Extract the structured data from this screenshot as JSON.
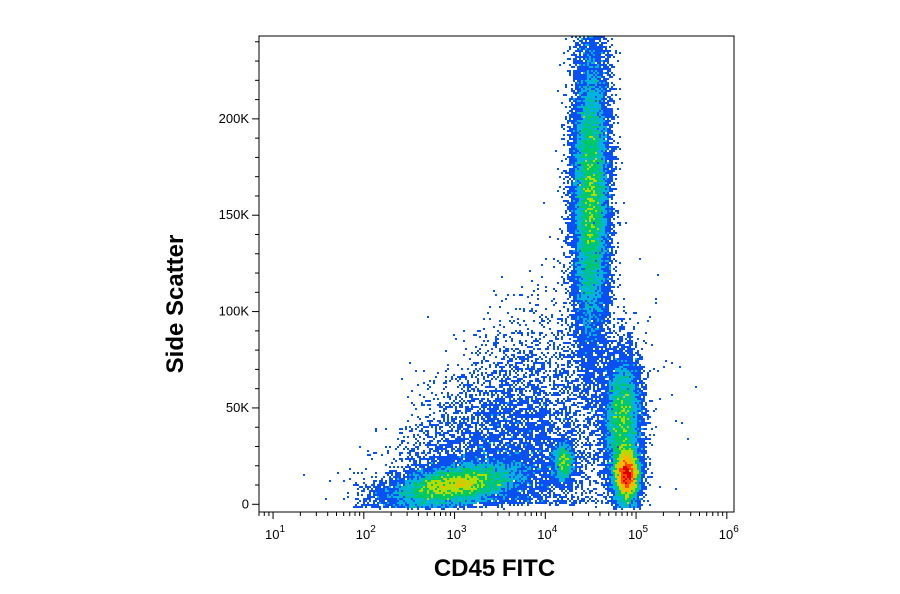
{
  "chart_data": {
    "type": "scatter",
    "style": "density-dot-plot",
    "title": "",
    "xlabel": "CD45 FITC",
    "ylabel": "Side Scatter",
    "x_scale": "log",
    "xlim": [
      7,
      1200000
    ],
    "ylim": [
      -4000,
      243000
    ],
    "x_ticks": [
      {
        "value": 10,
        "base": "10",
        "exp": "1"
      },
      {
        "value": 100,
        "base": "10",
        "exp": "2"
      },
      {
        "value": 1000,
        "base": "10",
        "exp": "3"
      },
      {
        "value": 10000,
        "base": "10",
        "exp": "4"
      },
      {
        "value": 100000,
        "base": "10",
        "exp": "5"
      },
      {
        "value": 1000000,
        "base": "10",
        "exp": "6"
      }
    ],
    "y_ticks": [
      {
        "value": 0,
        "label": "0"
      },
      {
        "value": 50000,
        "label": "50K"
      },
      {
        "value": 100000,
        "label": "100K"
      },
      {
        "value": 150000,
        "label": "150K"
      },
      {
        "value": 200000,
        "label": "200K"
      }
    ],
    "density_colors": [
      "#1010c8",
      "#0a50f0",
      "#00b4dc",
      "#00c864",
      "#b4dc00",
      "#ffb400",
      "#ff4a00",
      "#dc0000"
    ],
    "populations": [
      {
        "x_log_center": 3.0,
        "y_center": 10000,
        "x_log_sd": 0.35,
        "y_sd": 5000,
        "weight": 0.22,
        "tilt": 0.45
      },
      {
        "x_log_center": 4.5,
        "y_center": 160000,
        "x_log_sd": 0.1,
        "y_sd": 40000,
        "weight": 0.34,
        "tilt": 0
      },
      {
        "x_log_center": 4.9,
        "y_center": 15000,
        "x_log_sd": 0.07,
        "y_sd": 7000,
        "weight": 0.16,
        "tilt": 0
      },
      {
        "x_log_center": 4.85,
        "y_center": 45000,
        "x_log_sd": 0.1,
        "y_sd": 16000,
        "weight": 0.14,
        "tilt": 0.15
      },
      {
        "x_log_center": 4.2,
        "y_center": 22000,
        "x_log_sd": 0.06,
        "y_sd": 5000,
        "weight": 0.03,
        "tilt": 0
      },
      {
        "x_log_center": 3.6,
        "y_center": 40000,
        "x_log_sd": 0.55,
        "y_sd": 38000,
        "weight": 0.11,
        "tilt": 0,
        "sparse": true
      }
    ]
  }
}
